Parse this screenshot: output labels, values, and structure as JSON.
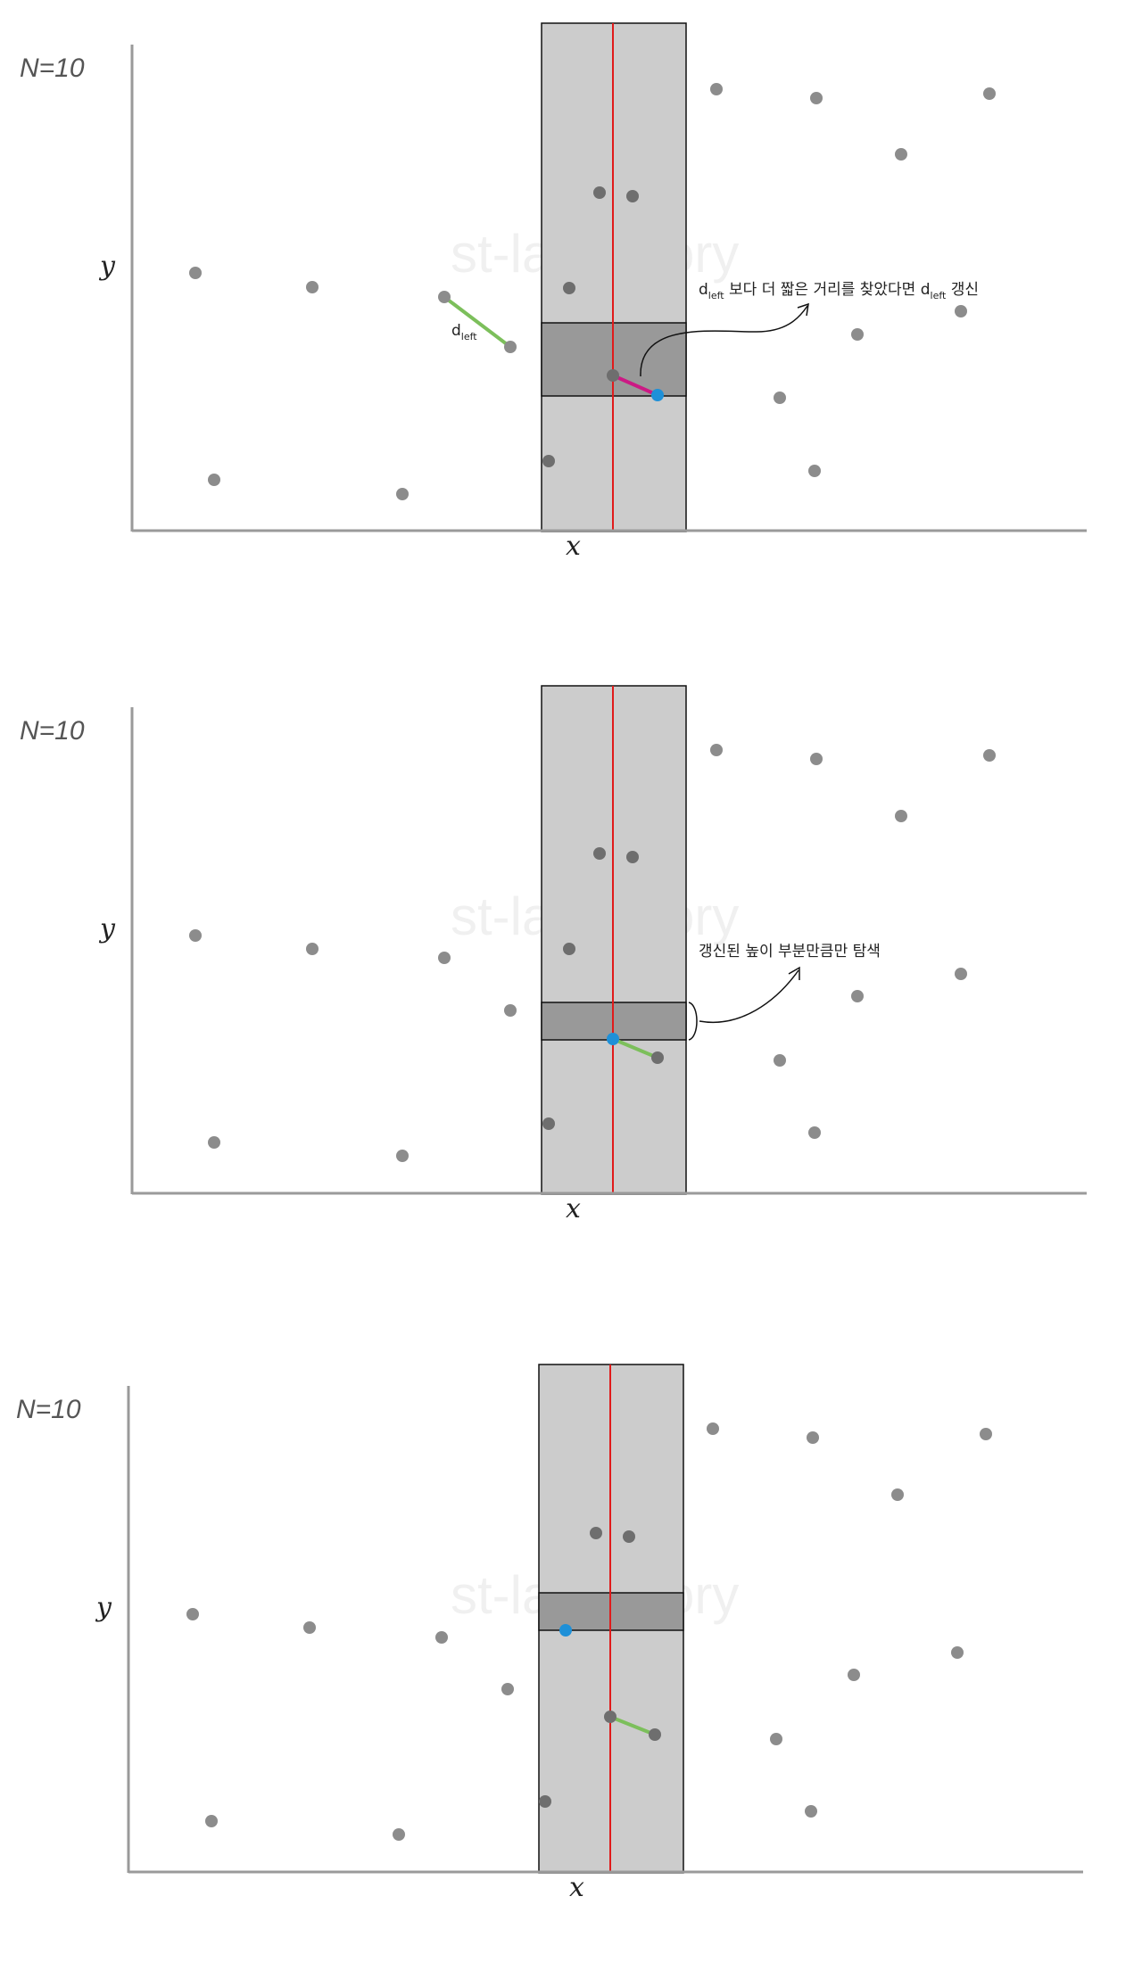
{
  "watermark": "st-lab.tistory",
  "colors": {
    "point": "#8c8c8c",
    "point_dark": "#6e6e6e",
    "highlight": "#1e90d8",
    "strip": "#cccccc",
    "window": "#999999",
    "divider": "#e01b1b",
    "d_left_segment": "#7cbf5b",
    "candidate_segment": "#cc1a84",
    "axis": "#9a9a9a"
  },
  "panels": [
    {
      "n_label": "N=10",
      "x_label": "x",
      "y_label": "y",
      "d_label": "d",
      "d_label_sub": "left",
      "annotation": {
        "prefix": "d",
        "prefix_sub": "left",
        "middle": " 보다 더 짧은 거리를 찾았다면 d",
        "middle_sub": "left",
        "suffix": " 갱신"
      }
    },
    {
      "n_label": "N=10",
      "x_label": "x",
      "y_label": "y",
      "annotation": {
        "text": "갱신된 높이 부분만큼만 탐색"
      }
    },
    {
      "n_label": "N=10",
      "x_label": "x",
      "y_label": "y"
    }
  ]
}
